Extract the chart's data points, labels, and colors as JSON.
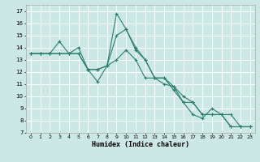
{
  "xlabel": "Humidex (Indice chaleur)",
  "bg_color": "#cce8e5",
  "grid_color": "#ffffff",
  "line_color": "#2d7d6e",
  "xlim": [
    -0.5,
    23.5
  ],
  "ylim": [
    7,
    17.5
  ],
  "xticks": [
    0,
    1,
    2,
    3,
    4,
    5,
    6,
    7,
    8,
    9,
    10,
    11,
    12,
    13,
    14,
    15,
    16,
    17,
    18,
    19,
    20,
    21,
    22,
    23
  ],
  "yticks": [
    7,
    8,
    9,
    10,
    11,
    12,
    13,
    14,
    15,
    16,
    17
  ],
  "line1_x": [
    0,
    1,
    2,
    3,
    4,
    5,
    6,
    7,
    8,
    9,
    10,
    11,
    12,
    13,
    14,
    15,
    16,
    17,
    18,
    19,
    20,
    21,
    22,
    23
  ],
  "line1_y": [
    13.5,
    13.5,
    13.5,
    13.5,
    13.5,
    13.5,
    12.2,
    12.2,
    12.5,
    13.0,
    13.8,
    13.0,
    11.5,
    11.5,
    11.5,
    10.8,
    10.0,
    9.5,
    8.5,
    8.5,
    8.5,
    7.5,
    7.5,
    7.5
  ],
  "line2_x": [
    0,
    1,
    2,
    3,
    4,
    5,
    6,
    7,
    8,
    9,
    10,
    11,
    12,
    13,
    14,
    15,
    16,
    17,
    18,
    19,
    20,
    21,
    22,
    23
  ],
  "line2_y": [
    13.5,
    13.5,
    13.5,
    13.5,
    13.5,
    13.5,
    12.2,
    11.2,
    12.5,
    16.8,
    15.5,
    13.8,
    13.0,
    11.5,
    11.0,
    10.8,
    9.5,
    8.5,
    8.2,
    9.0,
    8.5,
    8.5,
    7.5,
    7.5
  ],
  "line3_x": [
    0,
    1,
    2,
    3,
    4,
    5,
    6,
    7,
    8,
    9,
    10,
    11,
    12,
    13,
    14,
    15,
    16,
    17,
    18,
    19,
    20,
    21,
    22,
    23
  ],
  "line3_y": [
    13.5,
    13.5,
    13.5,
    14.5,
    13.5,
    14.0,
    12.2,
    12.2,
    12.5,
    15.0,
    15.5,
    14.0,
    13.0,
    11.5,
    11.5,
    10.5,
    9.5,
    9.5,
    8.5,
    8.5,
    8.5,
    7.5,
    7.5,
    7.5
  ]
}
